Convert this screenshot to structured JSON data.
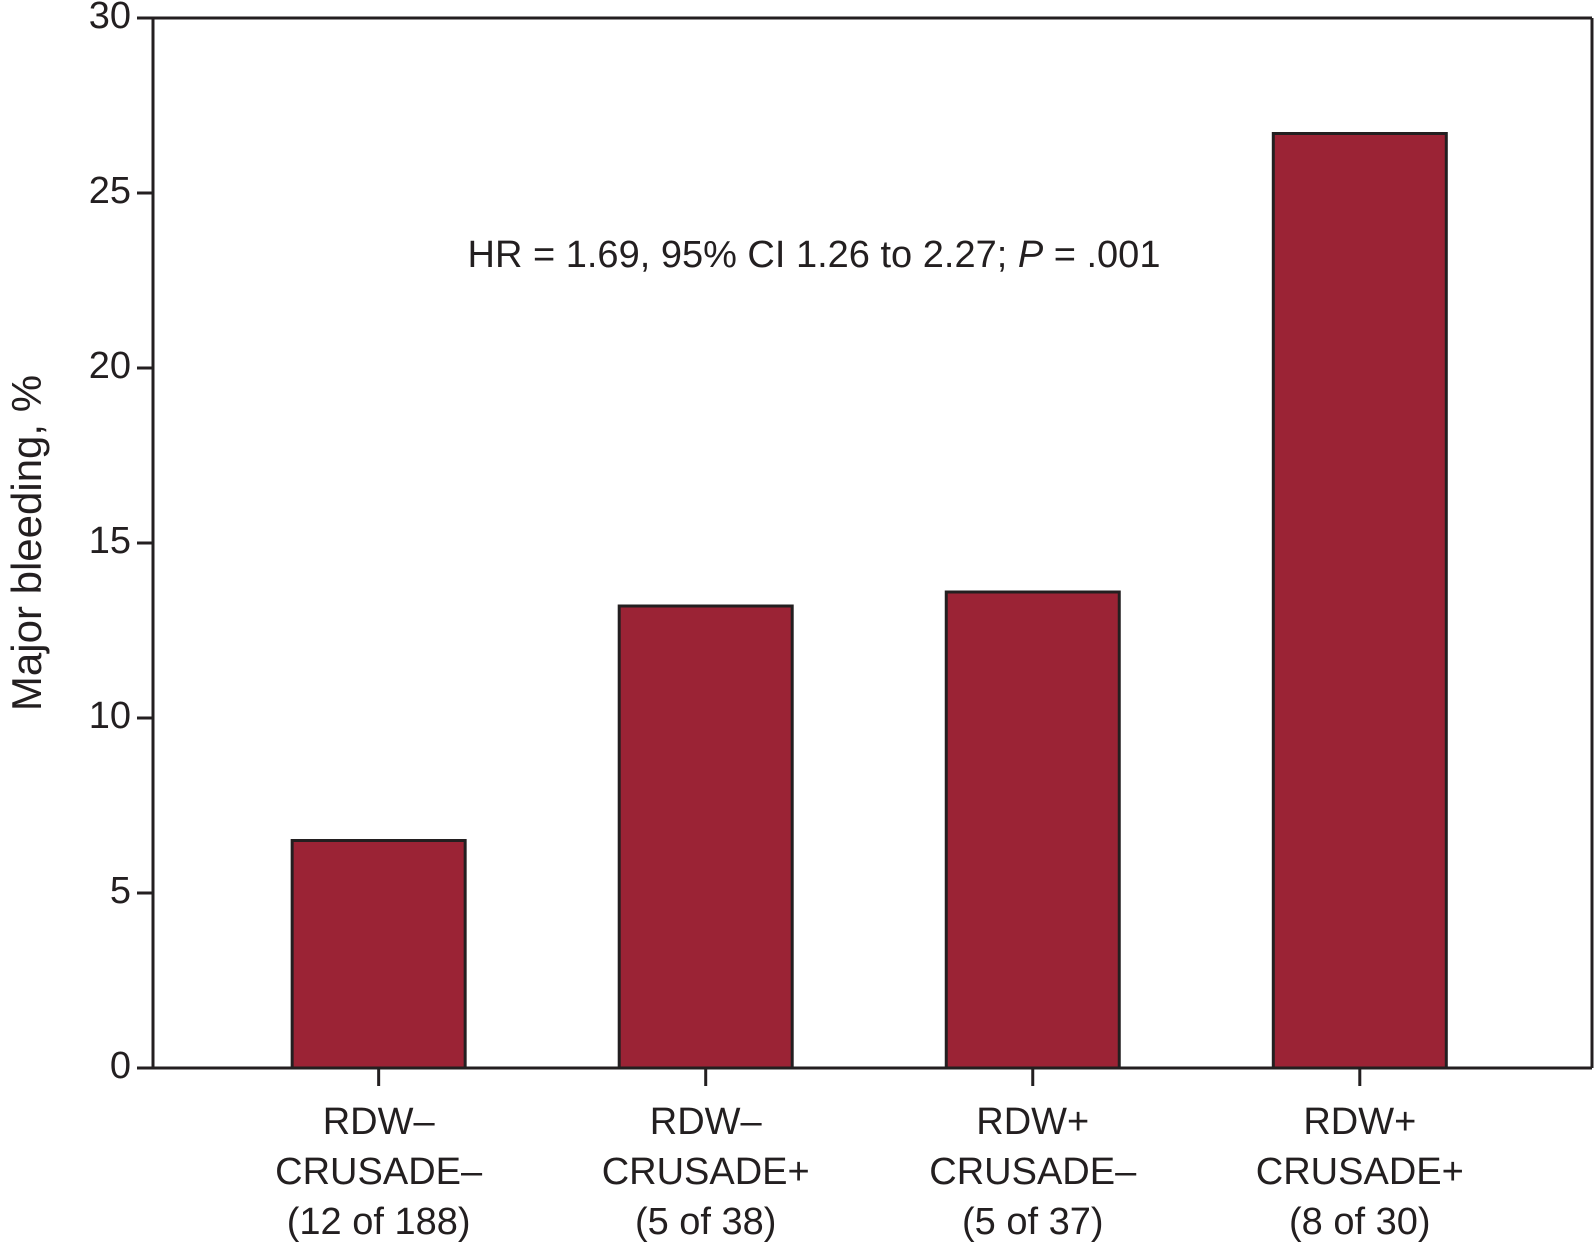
{
  "chart_data": {
    "type": "bar",
    "y_label": "Major bleeding, %",
    "annotation": [
      "HR = 1.69, 95% CI 1.26 to 2.27; ",
      "P",
      " = .001"
    ],
    "categories": [
      [
        "RDW–",
        "CRUSADE–",
        "(12 of 188)"
      ],
      [
        "RDW–",
        "CRUSADE+",
        "(5 of 38)"
      ],
      [
        "RDW+",
        "CRUSADE–",
        "(5 of 37)"
      ],
      [
        "RDW+",
        "CRUSADE+",
        "(8 of 30)"
      ]
    ],
    "values": [
      6.5,
      13.2,
      13.6,
      26.7
    ],
    "color": "#9b2335",
    "ylim": [
      0,
      30
    ],
    "yticks": [
      0,
      5,
      10,
      15,
      20,
      25,
      30
    ],
    "grid": false
  }
}
